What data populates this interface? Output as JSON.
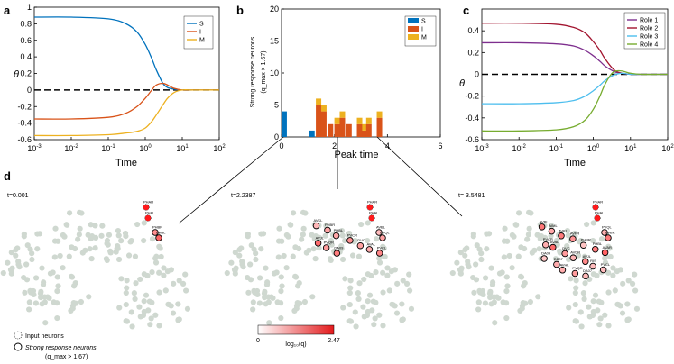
{
  "panels": {
    "a": "a",
    "b": "b",
    "c": "c",
    "d": "d"
  },
  "chart_data": [
    {
      "panel": "a",
      "type": "line",
      "xscale": "log",
      "xlim": [
        0.001,
        100
      ],
      "ylim": [
        -0.6,
        1
      ],
      "xlabel": "Time",
      "ylabel": "θ",
      "xtick_labels": [
        "10^-3",
        "10^-2",
        "10^-1",
        "10^0",
        "10^1",
        "10^2"
      ],
      "ytick_labels": [
        "-0.6",
        "-0.4",
        "-0.2",
        "0",
        "0.2",
        "0.4",
        "0.6",
        "0.8",
        "1"
      ],
      "grid": false,
      "legend": "top-right",
      "reference_line": {
        "y": 0,
        "style": "dashed"
      },
      "series": [
        {
          "name": "S",
          "color": "#0072bd",
          "x": [
            0.001,
            0.01,
            0.1,
            0.3,
            0.6,
            1,
            1.5,
            2,
            3,
            4,
            6,
            10,
            20,
            100
          ],
          "values": [
            0.88,
            0.88,
            0.86,
            0.8,
            0.7,
            0.55,
            0.38,
            0.24,
            0.08,
            0.03,
            0.01,
            0.0,
            0.0,
            0.0
          ]
        },
        {
          "name": "I",
          "color": "#d95319",
          "x": [
            0.001,
            0.01,
            0.1,
            0.3,
            0.6,
            1,
            1.5,
            2,
            3,
            4,
            6,
            10,
            20,
            100
          ],
          "values": [
            -0.35,
            -0.35,
            -0.33,
            -0.28,
            -0.2,
            -0.1,
            0.0,
            0.06,
            0.08,
            0.06,
            0.02,
            0.0,
            0.0,
            0.0
          ]
        },
        {
          "name": "M",
          "color": "#edb120",
          "x": [
            0.001,
            0.01,
            0.1,
            0.3,
            0.6,
            1,
            1.5,
            2,
            3,
            4,
            6,
            10,
            20,
            100
          ],
          "values": [
            -0.55,
            -0.55,
            -0.54,
            -0.52,
            -0.5,
            -0.46,
            -0.38,
            -0.3,
            -0.18,
            -0.1,
            -0.03,
            0.0,
            0.0,
            0.0
          ]
        }
      ]
    },
    {
      "panel": "b",
      "type": "bar",
      "stacked": true,
      "xlim": [
        0,
        6
      ],
      "ylim": [
        0,
        20
      ],
      "xlabel": "Peak time",
      "ylabel": "Strong response neurons",
      "ylabel_sub": "(q_max > 1.67)",
      "xtick_labels": [
        "0",
        "2",
        "4",
        "6"
      ],
      "ytick_labels": [
        "0",
        "5",
        "10",
        "15",
        "20"
      ],
      "legend": "top-right",
      "x": [
        0.1,
        1.15,
        1.4,
        1.6,
        1.85,
        2.1,
        2.3,
        2.55,
        2.95,
        3.15,
        3.3,
        3.7
      ],
      "series": [
        {
          "name": "S",
          "color": "#0072bd",
          "values": [
            4,
            1,
            0,
            0,
            0,
            0,
            0,
            0,
            0,
            0,
            0,
            0
          ]
        },
        {
          "name": "I",
          "color": "#d95319",
          "values": [
            0,
            0,
            5,
            4,
            2,
            2,
            3,
            2,
            2,
            1,
            2,
            3
          ]
        },
        {
          "name": "M",
          "color": "#edb120",
          "values": [
            0,
            0,
            1,
            1,
            0,
            1,
            1,
            0,
            1,
            1,
            1,
            1
          ]
        }
      ]
    },
    {
      "panel": "c",
      "type": "line",
      "xscale": "log",
      "xlim": [
        0.001,
        100
      ],
      "ylim": [
        -0.6,
        0.6
      ],
      "xlabel": "Time",
      "ylabel": "θ",
      "xtick_labels": [
        "10^-3",
        "10^-2",
        "10^-1",
        "10^0",
        "10^1",
        "10^2"
      ],
      "ytick_labels": [
        "-0.6",
        "-0.4",
        "-0.2",
        "0",
        "0.2",
        "0.4"
      ],
      "grid": false,
      "legend": "top-right",
      "reference_line": {
        "y": 0,
        "style": "dashed"
      },
      "series": [
        {
          "name": "Role 1",
          "color": "#7e2f8e",
          "x": [
            0.001,
            0.01,
            0.1,
            0.3,
            0.6,
            1,
            1.5,
            2,
            3,
            4,
            6,
            10,
            20,
            100
          ],
          "values": [
            0.29,
            0.29,
            0.28,
            0.26,
            0.22,
            0.17,
            0.12,
            0.08,
            0.04,
            0.02,
            0.01,
            0.0,
            0.0,
            0.0
          ]
        },
        {
          "name": "Role 2",
          "color": "#a2142f",
          "x": [
            0.001,
            0.01,
            0.1,
            0.3,
            0.6,
            1,
            1.5,
            2,
            3,
            4,
            6,
            10,
            20,
            100
          ],
          "values": [
            0.47,
            0.47,
            0.46,
            0.43,
            0.38,
            0.3,
            0.22,
            0.15,
            0.07,
            0.03,
            0.01,
            0.0,
            0.0,
            0.0
          ]
        },
        {
          "name": "Role 3",
          "color": "#4dbeee",
          "x": [
            0.001,
            0.01,
            0.1,
            0.3,
            0.6,
            1,
            1.5,
            2,
            3,
            4,
            6,
            10,
            20,
            100
          ],
          "values": [
            -0.27,
            -0.27,
            -0.26,
            -0.24,
            -0.2,
            -0.15,
            -0.1,
            -0.06,
            -0.02,
            0.0,
            0.01,
            0.0,
            0.0,
            0.0
          ]
        },
        {
          "name": "Role 4",
          "color": "#77ac30",
          "x": [
            0.001,
            0.01,
            0.1,
            0.3,
            0.6,
            1,
            1.5,
            2,
            3,
            4,
            6,
            10,
            20,
            100
          ],
          "values": [
            -0.52,
            -0.52,
            -0.51,
            -0.48,
            -0.42,
            -0.32,
            -0.2,
            -0.1,
            0.0,
            0.03,
            0.03,
            0.01,
            0.0,
            0.0
          ]
        }
      ]
    }
  ],
  "panel_d": {
    "times": [
      "t=0.001",
      "t=2.2387",
      "t= 3.5481"
    ],
    "colorbar": {
      "min": "0",
      "max": "2.47",
      "label": "log₁₀(q)",
      "colors": [
        "#ffffff",
        "#e31a1c"
      ]
    },
    "legend": {
      "input": "Input neurons",
      "strong": "Strong response neurons",
      "strong_sub": "(q_max > 1.67)"
    },
    "network_colors": {
      "background": "#cfd8d0",
      "strong_edge": "#000000"
    },
    "labels_t1": [
      "PHAR",
      "PHAL",
      "PHBR",
      "PHBL"
    ],
    "labels_t2": [
      "PHAR",
      "PHAL",
      "AVBL",
      "PVQL",
      "AVKL",
      "PHBR",
      "PHBL",
      "PVCR",
      "DVC",
      "AVAL",
      "PVCL",
      "AVJL",
      "PVQR",
      "DA09"
    ],
    "labels_t3": [
      "PHAR",
      "PHAL",
      "PVQL",
      "AVBR",
      "AVBL",
      "AIML",
      "AVKL",
      "AVFR",
      "PHBR",
      "PHBL",
      "AVAR",
      "PVCR",
      "AVAL",
      "DVC",
      "AVDR",
      "AVJL",
      "RIS",
      "PVCL",
      "DA09",
      "DB07",
      "AVHL",
      "PVQR",
      "DA07"
    ]
  }
}
